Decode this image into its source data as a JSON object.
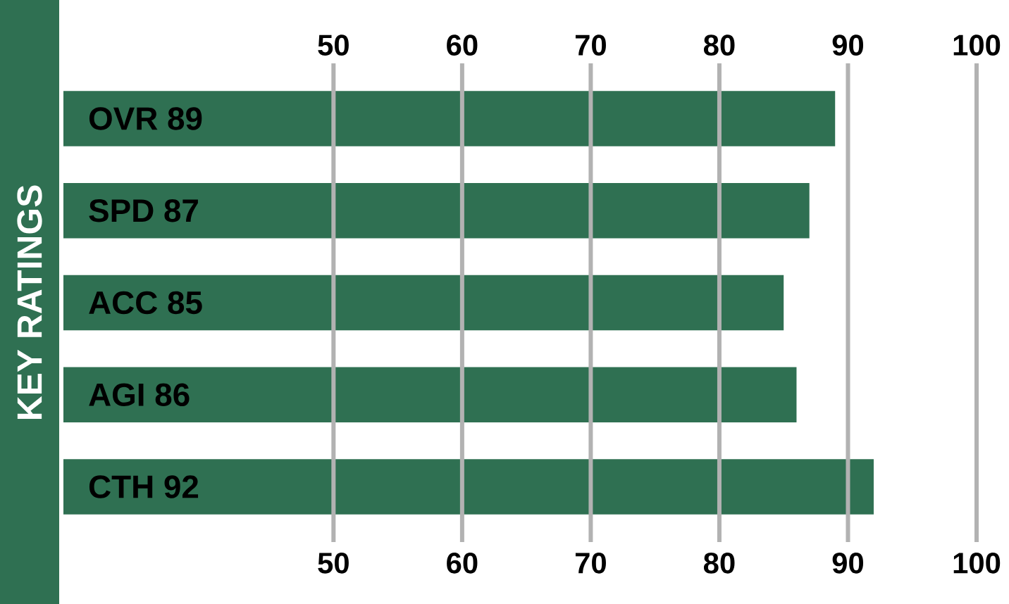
{
  "chart_data": {
    "type": "bar",
    "orientation": "horizontal",
    "ylabel": "KEY RATINGS",
    "categories": [
      "OVR 89",
      "SPD 87",
      "ACC 85",
      "AGI 86",
      "CTH 92"
    ],
    "values": [
      89,
      87,
      85,
      86,
      92
    ],
    "color": "#2f7052",
    "xlim": [
      29,
      100
    ],
    "xticks": [
      50,
      60,
      70,
      80,
      90,
      100
    ],
    "x2lim": [
      29,
      100
    ],
    "x2ticks": [
      50,
      60,
      70,
      80,
      90,
      100
    ],
    "grid": "x"
  }
}
